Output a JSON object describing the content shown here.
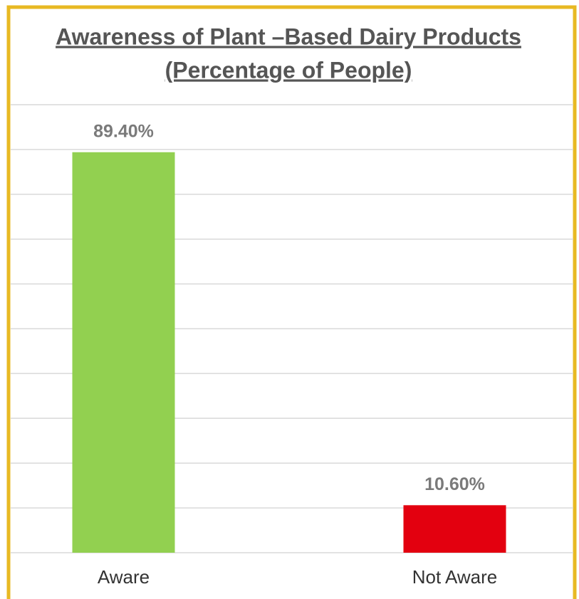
{
  "chart_data": {
    "type": "bar",
    "title": "Awareness of Plant –Based Dairy Products",
    "subtitle": "(Percentage of People)",
    "categories": [
      "Aware",
      "Not Aware"
    ],
    "values": [
      89.4,
      10.6
    ],
    "value_labels": [
      "89.40%",
      "10.60%"
    ],
    "colors": [
      "#92d050",
      "#e3000f"
    ],
    "ylim": [
      0,
      100
    ],
    "yticks": [
      0,
      10,
      20,
      30,
      40,
      50,
      60,
      70,
      80,
      90,
      100
    ],
    "grid": true
  }
}
